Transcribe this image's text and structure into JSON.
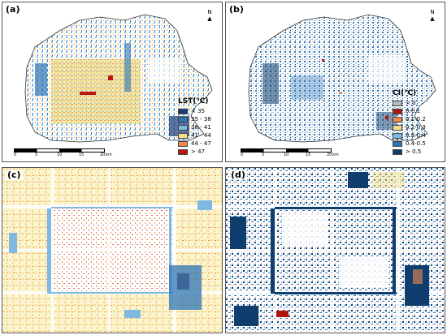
{
  "panels": [
    {
      "label": "(a)"
    },
    {
      "label": "(b)"
    },
    {
      "label": "(c)"
    },
    {
      "label": "(d)"
    }
  ],
  "north_label": "N",
  "scale": {
    "ticks": [
      "0",
      "5",
      "10",
      "15",
      "20"
    ],
    "unit": "km"
  },
  "legend_a": {
    "title": "LST(℃)",
    "items": [
      {
        "label": "< 35",
        "color": "#1a3a7a"
      },
      {
        "label": "35 - 38",
        "color": "#2e75b6"
      },
      {
        "label": "38 - 41",
        "color": "#7fb9e2"
      },
      {
        "label": "41 - 44",
        "color": "#f4e08a"
      },
      {
        "label": "44 - 47",
        "color": "#f08a4b"
      },
      {
        "label": "> 47",
        "color": "#c0140e"
      }
    ]
  },
  "legend_b": {
    "title": "CI(℃)",
    "items": [
      {
        "label": "< 0",
        "color": "#bdbdbd"
      },
      {
        "label": "0-0.1",
        "color": "#b0160f"
      },
      {
        "label": "0.1-0.2",
        "color": "#f08a4b"
      },
      {
        "label": "0.2-0.3",
        "color": "#f4e08a"
      },
      {
        "label": "0.3-0.4",
        "color": "#7fb9e2"
      },
      {
        "label": "0.4-0.5",
        "color": "#2e75b6"
      },
      {
        "label": "> 0.5",
        "color": "#0f3d6e"
      }
    ]
  }
}
